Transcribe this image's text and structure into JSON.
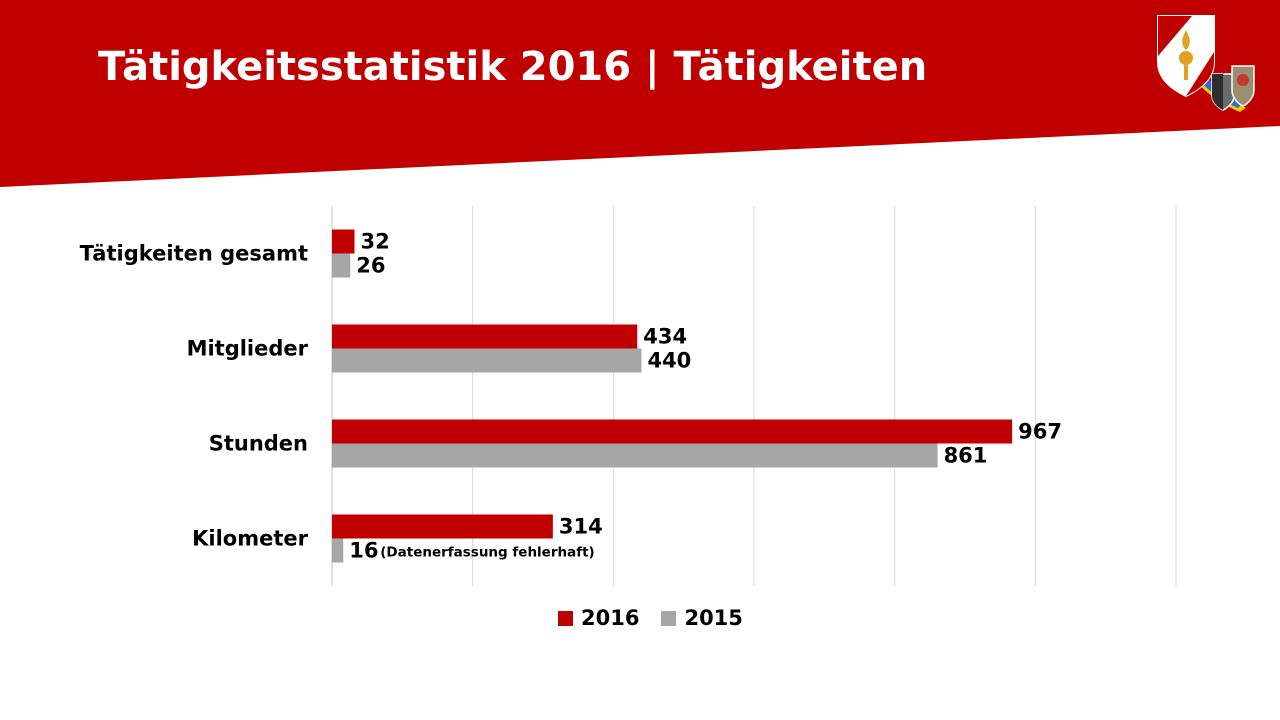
{
  "title": "Tätigkeitsstatistik 2016 | Tätigkeiten",
  "colors": {
    "banner": "#c00000",
    "series_2016": "#c00000",
    "series_2015": "#a6a6a6",
    "grid": "#d9d9d9"
  },
  "logo": {
    "icon": "fire-brigade-coat-of-arms-icon"
  },
  "chart_data": {
    "type": "bar",
    "orientation": "horizontal",
    "categories": [
      "Tätigkeiten gesamt",
      "Mitglieder",
      "Stunden",
      "Kilometer"
    ],
    "series": [
      {
        "name": "2016",
        "values": [
          32,
          434,
          967,
          314
        ]
      },
      {
        "name": "2015",
        "values": [
          26,
          440,
          861,
          16
        ]
      }
    ],
    "annotations": [
      {
        "category": "Kilometer",
        "series": "2015",
        "text": "(Datenerfassung fehlerhaft)"
      }
    ],
    "xlim": [
      0,
      1200
    ],
    "x_gridline_step": 200,
    "grid": true,
    "legend": {
      "position": "bottom",
      "entries": [
        "2016",
        "2015"
      ]
    }
  }
}
